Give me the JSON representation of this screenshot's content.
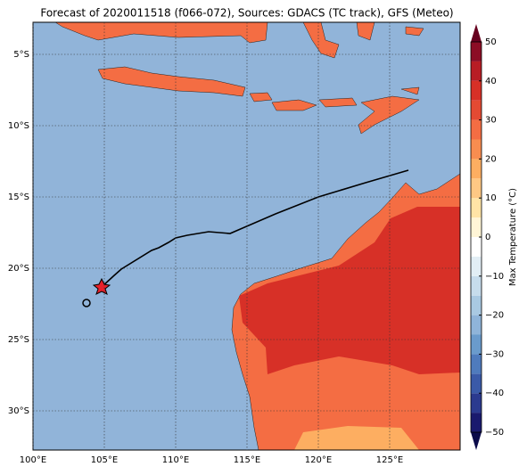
{
  "title": "Forecast of 2020011518 (f066-072), Sources: GDACS (TC track), GFS (Meteo)",
  "lon_ticks": [
    {
      "value": 100,
      "label": "100°E"
    },
    {
      "value": 105,
      "label": "105°E"
    },
    {
      "value": 110,
      "label": "110°E"
    },
    {
      "value": 115,
      "label": "115°E"
    },
    {
      "value": 120,
      "label": "120°E"
    },
    {
      "value": 125,
      "label": "125°E"
    }
  ],
  "lat_ticks": [
    {
      "value": -5,
      "label": "5°S"
    },
    {
      "value": -10,
      "label": "10°S"
    },
    {
      "value": -15,
      "label": "15°S"
    },
    {
      "value": -20,
      "label": "20°S"
    },
    {
      "value": -25,
      "label": "25°S"
    },
    {
      "value": -30,
      "label": "30°S"
    }
  ],
  "colorbar": {
    "label": "Max Temperature (°C)",
    "ticks": [
      50,
      40,
      30,
      20,
      10,
      0,
      {
        "value": -10,
        "label": "−10"
      },
      {
        "value": -20,
        "label": "−20"
      },
      {
        "value": -30,
        "label": "−30"
      },
      {
        "value": -40,
        "label": "−40"
      },
      {
        "value": -50,
        "label": "−50"
      }
    ]
  }
}
